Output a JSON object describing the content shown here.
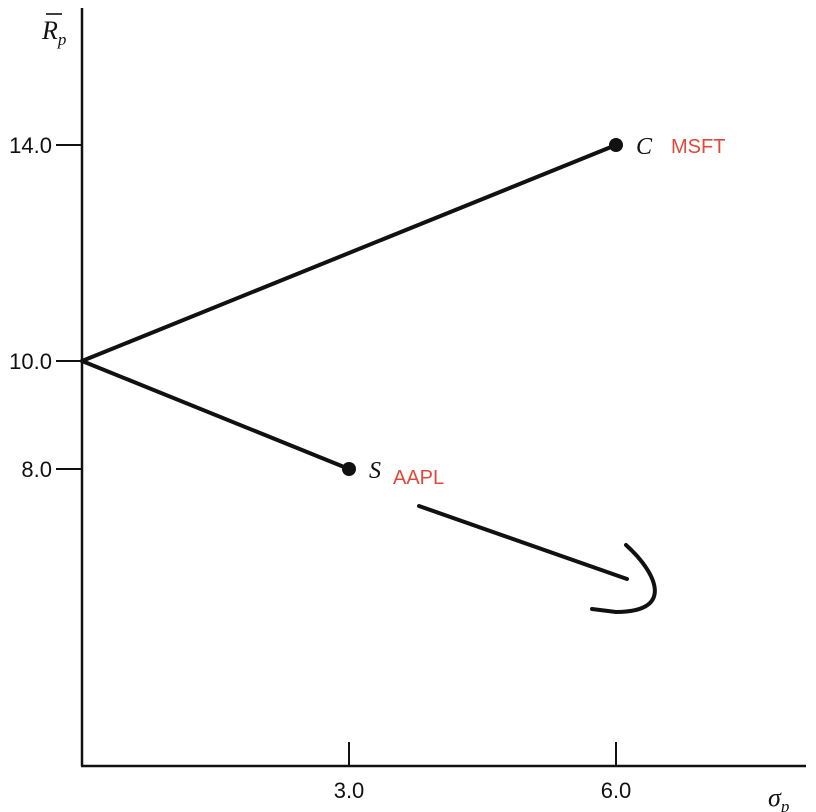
{
  "chart_data": {
    "type": "line",
    "xlabel": "σp",
    "ylabel": "Rp",
    "xlim": [
      0,
      7.3
    ],
    "ylim": [
      3.0,
      18.6
    ],
    "x_ticks": [
      {
        "value": 3.0,
        "label": "3.0"
      },
      {
        "value": 6.0,
        "label": "6.0"
      }
    ],
    "y_ticks": [
      {
        "value": 8.0,
        "label": "8.0"
      },
      {
        "value": 10.0,
        "label": "10.0"
      },
      {
        "value": 14.0,
        "label": "14.0"
      }
    ],
    "series": [
      {
        "points": [
          {
            "x": 0,
            "y": 10.0
          },
          {
            "x": 6.0,
            "y": 14.0
          }
        ]
      },
      {
        "points": [
          {
            "x": 0,
            "y": 10.0
          },
          {
            "x": 3.0,
            "y": 8.0
          }
        ]
      }
    ],
    "points": [
      {
        "label": "C",
        "annotation": "MSFT",
        "x": 6.0,
        "y": 14.0
      },
      {
        "label": "S",
        "annotation": "AAPL",
        "x": 3.0,
        "y": 8.0
      }
    ],
    "grid": false,
    "annotation_color": "#e2483a"
  }
}
